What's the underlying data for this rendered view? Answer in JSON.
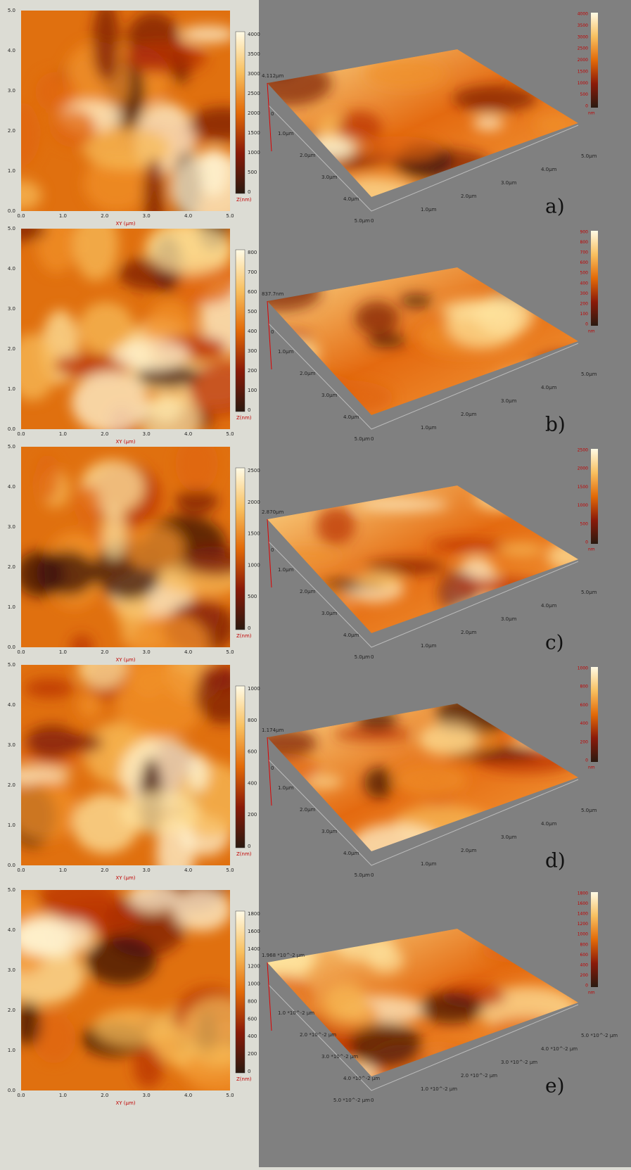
{
  "panels": [
    {
      "label": "a)",
      "map": {
        "yticks": [
          "0.0",
          "1.0",
          "2.0",
          "3.0",
          "4.0",
          "5.0"
        ],
        "xticks": [
          "0.0",
          "1.0",
          "2.0",
          "3.0",
          "4.0",
          "5.0"
        ],
        "xlabel": "XY (µm)",
        "colorbar_ticks": [
          "0",
          "500",
          "1000",
          "1500",
          "2000",
          "2500",
          "3000",
          "3500",
          "4000"
        ],
        "colorbar_label": "Z(nm)"
      },
      "surface": {
        "height_label": "4.112µm",
        "zero": "0",
        "depth_ticks": [
          "1.0µm",
          "2.0µm",
          "3.0µm",
          "4.0µm",
          "5.0µm"
        ],
        "origin": "0",
        "front_ticks": [
          "1.0µm",
          "2.0µm",
          "3.0µm",
          "4.0µm",
          "5.0µm"
        ],
        "colorbar_ticks": [
          "0",
          "500",
          "1000",
          "1500",
          "2000",
          "2500",
          "3000",
          "3500",
          "4000"
        ],
        "colorbar_unit": "nm"
      }
    },
    {
      "label": "b)",
      "map": {
        "yticks": [
          "0.0",
          "1.0",
          "2.0",
          "3.0",
          "4.0",
          "5.0"
        ],
        "xticks": [
          "0.0",
          "1.0",
          "2.0",
          "3.0",
          "4.0",
          "5.0"
        ],
        "xlabel": "XY (µm)",
        "colorbar_ticks": [
          "0",
          "100",
          "200",
          "300",
          "400",
          "500",
          "600",
          "700",
          "800"
        ],
        "colorbar_label": "Z(nm)"
      },
      "surface": {
        "height_label": "837.7nm",
        "zero": "0",
        "depth_ticks": [
          "1.0µm",
          "2.0µm",
          "3.0µm",
          "4.0µm",
          "5.0µm"
        ],
        "origin": "0",
        "front_ticks": [
          "1.0µm",
          "2.0µm",
          "3.0µm",
          "4.0µm",
          "5.0µm"
        ],
        "colorbar_ticks": [
          "0",
          "100",
          "200",
          "300",
          "400",
          "500",
          "600",
          "700",
          "800",
          "900"
        ],
        "colorbar_unit": "nm"
      }
    },
    {
      "label": "c)",
      "map": {
        "yticks": [
          "0.0",
          "1.0",
          "2.0",
          "3.0",
          "4.0",
          "5.0"
        ],
        "xticks": [
          "0.0",
          "1.0",
          "2.0",
          "3.0",
          "4.0",
          "5.0"
        ],
        "xlabel": "XY (µm)",
        "colorbar_ticks": [
          "0",
          "500",
          "1000",
          "1500",
          "2000",
          "2500"
        ],
        "colorbar_label": "Z(nm)"
      },
      "surface": {
        "height_label": "2.870µm",
        "zero": "0",
        "depth_ticks": [
          "1.0µm",
          "2.0µm",
          "3.0µm",
          "4.0µm",
          "5.0µm"
        ],
        "origin": "0",
        "front_ticks": [
          "1.0µm",
          "2.0µm",
          "3.0µm",
          "4.0µm",
          "5.0µm"
        ],
        "colorbar_ticks": [
          "0",
          "500",
          "1000",
          "1500",
          "2000",
          "2500"
        ],
        "colorbar_unit": "nm"
      }
    },
    {
      "label": "d)",
      "map": {
        "yticks": [
          "0.0",
          "1.0",
          "2.0",
          "3.0",
          "4.0",
          "5.0"
        ],
        "xticks": [
          "0.0",
          "1.0",
          "2.0",
          "3.0",
          "4.0",
          "5.0"
        ],
        "xlabel": "XY (µm)",
        "colorbar_ticks": [
          "0",
          "200",
          "400",
          "600",
          "800",
          "1000"
        ],
        "colorbar_label": "Z(nm)"
      },
      "surface": {
        "height_label": "1.174µm",
        "zero": "0",
        "depth_ticks": [
          "1.0µm",
          "2.0µm",
          "3.0µm",
          "4.0µm",
          "5.0µm"
        ],
        "origin": "0",
        "front_ticks": [
          "1.0µm",
          "2.0µm",
          "3.0µm",
          "4.0µm",
          "5.0µm"
        ],
        "colorbar_ticks": [
          "0",
          "200",
          "400",
          "600",
          "800",
          "1000"
        ],
        "colorbar_unit": "nm"
      }
    },
    {
      "label": "e)",
      "map": {
        "yticks": [
          "0.0",
          "1.0",
          "2.0",
          "3.0",
          "4.0",
          "5.0"
        ],
        "xticks": [
          "0.0",
          "1.0",
          "2.0",
          "3.0",
          "4.0",
          "5.0"
        ],
        "xlabel": "XY (µm)",
        "colorbar_ticks": [
          "0",
          "200",
          "400",
          "600",
          "800",
          "1000",
          "1200",
          "1400",
          "1600",
          "1800"
        ],
        "colorbar_label": "Z(nm)"
      },
      "surface": {
        "height_label": "1.968 *10^-2  µm",
        "depth_ticks": [
          "1.0 *10^-2  µm",
          "2.0 *10^-2  µm",
          "3.0 *10^-2  µm",
          "4.0 *10^-2  µm",
          "5.0 *10^-2  µm"
        ],
        "origin": "0",
        "front_ticks": [
          "1.0 *10^-2  µm",
          "2.0 *10^-2  µm",
          "3.0 *10^-2  µm",
          "4.0 *10^-2  µm",
          "5.0 *10^-2  µm"
        ],
        "colorbar_ticks": [
          "0",
          "200",
          "400",
          "600",
          "800",
          "1000",
          "1200",
          "1400",
          "1600",
          "1800"
        ],
        "colorbar_unit": "nm"
      }
    }
  ]
}
